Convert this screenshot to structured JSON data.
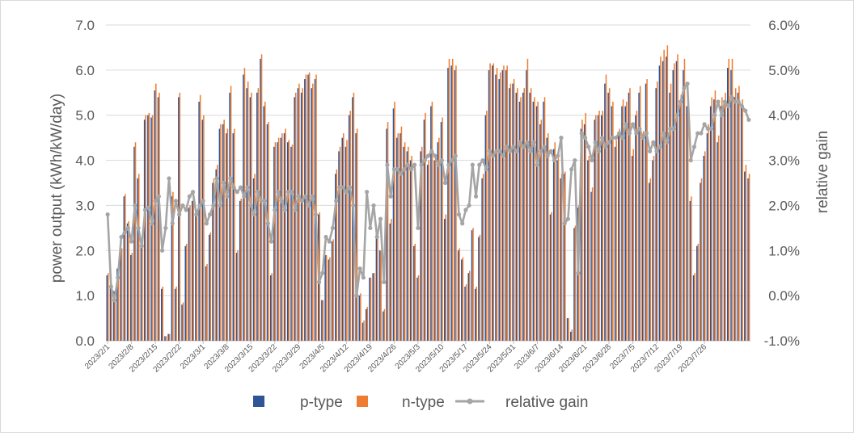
{
  "chart_data": {
    "type": "bar",
    "start_date": "2023-02-01",
    "x_tick_labels": [
      "2023/2/1",
      "2023/2/8",
      "2023/2/15",
      "2023/2/22",
      "2023/3/1",
      "2023/3/8",
      "2023/3/15",
      "2023/3/22",
      "2023/3/29",
      "2023/4/5",
      "2023/4/12",
      "2023/4/19",
      "2023/4/26",
      "2023/5/3",
      "2023/5/10",
      "2023/5/17",
      "2023/5/24",
      "2023/5/31",
      "2023/6/7",
      "2023/6/14",
      "2023/6/21",
      "2023/6/28",
      "2023/7/5",
      "2023/7/12",
      "2023/7/19",
      "2023/7/26"
    ],
    "ylabel": "power output  (kWh/kW/day)",
    "ylabel_right": "relative gain",
    "y_ticks": [
      "0.0",
      "1.0",
      "2.0",
      "3.0",
      "4.0",
      "5.0",
      "6.0",
      "7.0"
    ],
    "y2_ticks": [
      "-1.0%",
      "0.0%",
      "1.0%",
      "2.0%",
      "3.0%",
      "4.0%",
      "5.0%",
      "6.0%"
    ],
    "ylim": [
      0,
      7
    ],
    "y2lim": [
      -1,
      6
    ],
    "series": [
      {
        "name": "p-type",
        "axis": "left",
        "color": "#2F5597",
        "values": [
          1.45,
          1.2,
          1.1,
          1.6,
          2.0,
          3.2,
          2.6,
          1.9,
          4.3,
          3.6,
          2.1,
          4.9,
          5.0,
          4.95,
          5.55,
          5.4,
          1.15,
          0.1,
          0.15,
          3.2,
          1.15,
          5.4,
          0.8,
          2.1,
          2.95,
          3.1,
          2.8,
          5.3,
          4.9,
          1.65,
          2.35,
          3.5,
          3.8,
          4.7,
          4.8,
          4.6,
          5.5,
          4.6,
          1.95,
          3.1,
          5.9,
          5.6,
          5.4,
          3.6,
          5.5,
          6.25,
          5.2,
          4.8,
          1.45,
          4.3,
          4.4,
          4.5,
          4.6,
          4.4,
          4.3,
          5.4,
          5.6,
          5.5,
          5.8,
          5.9,
          5.6,
          5.8,
          2.8,
          0.9,
          1.9,
          1.8,
          2.2,
          3.7,
          4.2,
          4.5,
          4.3,
          5.0,
          5.4,
          4.6,
          1.0,
          0.4,
          0.7,
          1.4,
          1.5,
          2.4,
          2.0,
          0.65,
          4.7,
          2.6,
          5.15,
          4.5,
          4.6,
          4.3,
          4.2,
          4.0,
          2.1,
          1.4,
          4.2,
          4.9,
          3.9,
          5.2,
          4.0,
          4.4,
          4.85,
          2.7,
          6.05,
          6.1,
          6.0,
          2.0,
          1.8,
          1.2,
          1.5,
          2.45,
          1.15,
          2.3,
          3.6,
          5.0,
          6.0,
          6.1,
          5.9,
          5.8,
          6.0,
          6.0,
          5.6,
          5.7,
          5.5,
          5.3,
          5.5,
          6.0,
          5.5,
          5.3,
          5.2,
          4.8,
          5.3,
          4.5,
          2.8,
          4.25,
          4.0,
          3.6,
          3.7,
          0.5,
          0.2,
          2.5,
          2.95,
          4.7,
          4.8,
          4.0,
          3.3,
          4.9,
          5.0,
          5.0,
          5.7,
          5.5,
          5.2,
          4.3,
          4.6,
          5.2,
          5.2,
          5.5,
          4.1,
          5.0,
          5.5,
          4.5,
          5.7,
          3.5,
          4.0,
          5.6,
          6.1,
          6.2,
          6.3,
          5.5,
          6.0,
          6.2,
          5.3,
          6.0,
          5.2,
          3.1,
          1.45,
          2.1,
          3.5,
          4.1,
          4.6,
          5.2,
          5.35,
          4.4,
          5.2,
          5.3,
          6.05,
          6.0,
          5.4,
          5.5,
          5.2,
          3.75,
          3.6
        ]
      },
      {
        "name": "n-type",
        "axis": "left",
        "color": "#ED7D31",
        "values": [
          1.5,
          1.25,
          1.1,
          1.65,
          2.05,
          3.25,
          2.65,
          1.95,
          4.4,
          3.7,
          2.15,
          5.0,
          5.05,
          5.0,
          5.7,
          5.5,
          1.2,
          0.1,
          0.15,
          3.3,
          1.2,
          5.5,
          0.85,
          2.15,
          3.0,
          3.2,
          2.85,
          5.45,
          5.0,
          1.7,
          2.4,
          3.6,
          3.9,
          4.8,
          4.9,
          4.7,
          5.65,
          4.7,
          2.0,
          3.15,
          6.05,
          5.75,
          5.5,
          3.7,
          5.6,
          6.35,
          5.3,
          4.85,
          1.5,
          4.4,
          4.5,
          4.6,
          4.7,
          4.45,
          4.35,
          5.5,
          5.7,
          5.6,
          5.9,
          5.95,
          5.7,
          5.9,
          2.85,
          0.9,
          1.9,
          1.85,
          2.25,
          3.8,
          4.3,
          4.6,
          4.45,
          5.1,
          5.5,
          4.7,
          1.05,
          0.45,
          0.75,
          1.4,
          1.5,
          2.45,
          2.0,
          0.7,
          4.85,
          2.7,
          5.3,
          4.6,
          4.75,
          4.4,
          4.3,
          4.1,
          2.15,
          1.45,
          4.3,
          5.05,
          4.0,
          5.3,
          4.1,
          4.5,
          4.95,
          2.8,
          6.25,
          6.25,
          6.1,
          2.05,
          1.85,
          1.25,
          1.55,
          2.5,
          1.2,
          2.35,
          3.7,
          5.1,
          6.15,
          6.15,
          6.05,
          5.95,
          6.1,
          6.1,
          5.7,
          5.8,
          5.6,
          5.4,
          5.6,
          6.25,
          5.6,
          5.4,
          5.3,
          4.9,
          5.4,
          4.6,
          2.85,
          4.4,
          4.05,
          3.7,
          3.75,
          0.5,
          0.25,
          2.55,
          3.0,
          4.9,
          5.05,
          4.1,
          3.4,
          5.0,
          5.1,
          5.1,
          5.9,
          5.6,
          5.3,
          4.45,
          4.7,
          5.35,
          5.3,
          5.6,
          4.25,
          5.1,
          5.65,
          4.65,
          5.8,
          3.6,
          4.1,
          5.75,
          6.3,
          6.45,
          6.55,
          5.7,
          6.15,
          6.35,
          5.45,
          6.25,
          5.35,
          3.2,
          1.5,
          2.15,
          3.6,
          4.2,
          4.8,
          5.4,
          5.55,
          4.55,
          5.4,
          5.5,
          6.25,
          6.25,
          5.6,
          5.65,
          5.35,
          3.9,
          3.7
        ]
      },
      {
        "name": "relative gain",
        "axis": "right",
        "color": "#A5A5A5",
        "type": "line",
        "values_pct": [
          1.8,
          0.2,
          -0.1,
          0.4,
          1.3,
          1.4,
          1.5,
          1.2,
          2.0,
          1.5,
          1.1,
          1.9,
          1.95,
          1.6,
          2.1,
          2.2,
          1.0,
          1.5,
          2.6,
          1.6,
          2.1,
          1.8,
          2.0,
          1.9,
          2.2,
          2.3,
          1.8,
          2.0,
          2.1,
          1.6,
          1.8,
          2.0,
          2.6,
          2.0,
          2.5,
          2.2,
          2.6,
          2.4,
          2.3,
          2.4,
          2.2,
          2.4,
          2.0,
          1.8,
          2.3,
          2.1,
          2.1,
          1.6,
          1.2,
          1.9,
          2.3,
          2.1,
          1.9,
          2.3,
          2.3,
          1.9,
          2.2,
          2.1,
          2.2,
          2.0,
          2.2,
          1.8,
          0.3,
          0.5,
          1.3,
          1.2,
          1.5,
          2.1,
          2.4,
          2.4,
          2.3,
          2.4,
          2.0,
          0.0,
          0.6,
          0.4,
          2.3,
          1.5,
          2.0,
          1.3,
          1.7,
          0.3,
          2.9,
          2.2,
          2.8,
          2.8,
          2.7,
          2.8,
          2.9,
          2.8,
          2.9,
          1.5,
          2.9,
          3.0,
          3.1,
          3.2,
          3.1,
          2.9,
          3.0,
          2.5,
          2.9,
          3.0,
          3.1,
          1.8,
          1.6,
          1.9,
          2.0,
          2.9,
          2.2,
          2.9,
          3.0,
          2.8,
          3.2,
          3.1,
          3.2,
          3.2,
          3.1,
          3.3,
          3.2,
          3.3,
          3.2,
          3.4,
          3.3,
          3.4,
          3.2,
          3.4,
          2.9,
          3.2,
          3.3,
          3.1,
          3.2,
          3.0,
          3.1,
          3.5,
          1.6,
          1.7,
          2.8,
          3.0,
          0.5,
          3.6,
          3.5,
          3.3,
          3.0,
          3.4,
          3.2,
          3.5,
          3.3,
          3.4,
          3.5,
          3.5,
          3.6,
          3.5,
          3.8,
          3.6,
          3.8,
          3.6,
          3.7,
          3.5,
          3.6,
          3.2,
          3.4,
          3.2,
          3.3,
          3.6,
          3.4,
          3.7,
          3.7,
          4.0,
          4.3,
          4.6,
          4.7,
          3.0,
          3.3,
          3.6,
          3.6,
          3.8,
          3.7,
          3.7,
          4.0,
          4.3,
          4.0,
          4.3,
          4.2,
          4.4,
          4.3,
          4.3,
          4.2,
          4.1,
          3.9
        ]
      }
    ],
    "legend": [
      "p-type",
      "n-type",
      "relative gain"
    ],
    "legend_position": "bottom"
  }
}
